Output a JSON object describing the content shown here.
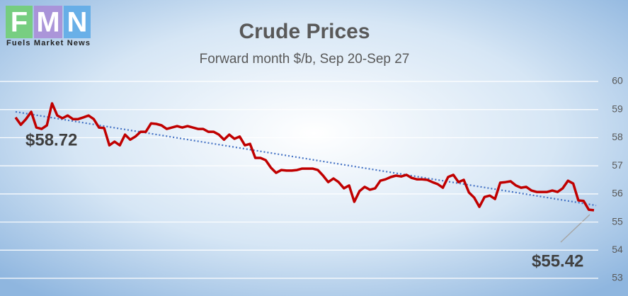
{
  "logo": {
    "letters": [
      "F",
      "M",
      "N"
    ],
    "tagline": "Fuels Market News"
  },
  "chart_data": {
    "type": "line",
    "title": "Crude Prices",
    "subtitle": "Forward month $/b, Sep 20-Sep 27",
    "series": [
      {
        "name": "Crude",
        "color": "#c00000",
        "values": [
          58.72,
          58.46,
          58.66,
          58.92,
          58.36,
          58.31,
          58.44,
          59.22,
          58.79,
          58.69,
          58.79,
          58.66,
          58.66,
          58.72,
          58.79,
          58.66,
          58.36,
          58.34,
          57.73,
          57.86,
          57.73,
          58.11,
          57.93,
          58.04,
          58.21,
          58.21,
          58.51,
          58.49,
          58.44,
          58.31,
          58.36,
          58.41,
          58.36,
          58.41,
          58.36,
          58.31,
          58.31,
          58.21,
          58.21,
          58.11,
          57.93,
          58.11,
          57.96,
          58.04,
          57.73,
          57.78,
          57.28,
          57.28,
          57.2,
          56.93,
          56.75,
          56.85,
          56.83,
          56.83,
          56.85,
          56.9,
          56.9,
          56.9,
          56.85,
          56.65,
          56.42,
          56.55,
          56.42,
          56.2,
          56.3,
          55.72,
          56.1,
          56.25,
          56.15,
          56.2,
          56.47,
          56.52,
          56.6,
          56.65,
          56.62,
          56.68,
          56.57,
          56.52,
          56.52,
          56.5,
          56.42,
          56.35,
          56.22,
          56.6,
          56.68,
          56.42,
          56.5,
          56.05,
          55.87,
          55.54,
          55.89,
          55.94,
          55.82,
          56.4,
          56.42,
          56.45,
          56.3,
          56.22,
          56.25,
          56.12,
          56.07,
          56.07,
          56.07,
          56.12,
          56.07,
          56.2,
          56.47,
          56.37,
          55.77,
          55.75,
          55.44,
          55.42
        ]
      }
    ],
    "trendline": {
      "values": [
        58.92,
        55.59
      ],
      "color": "#4472c4"
    },
    "annotations": [
      "$58.72",
      "$55.42"
    ],
    "ylim": [
      53,
      60
    ],
    "yticks": [
      53,
      54,
      55,
      56,
      57,
      58,
      59,
      60
    ],
    "grid": true
  }
}
